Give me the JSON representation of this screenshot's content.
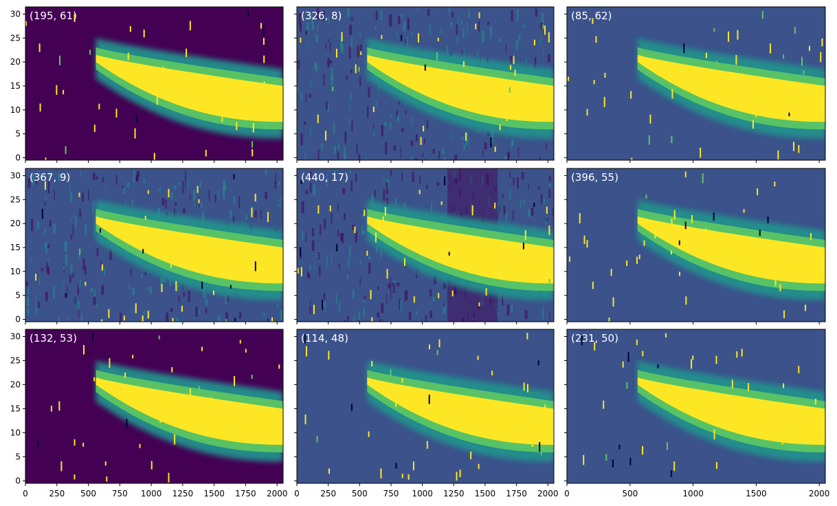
{
  "figure": {
    "colors": {
      "background_dark": "#440154",
      "background_medium": "#3b528b",
      "noise_teal": "#21918c",
      "signal_green": "#5ec962",
      "saturated_yellow": "#fde725",
      "axis": "#000000"
    },
    "colormap": "viridis"
  },
  "chart_data": [
    {
      "type": "heatmap",
      "label": "(195, 61)",
      "background": "dark",
      "xlim": [
        0,
        2048
      ],
      "ylim": [
        -0.5,
        31.5
      ],
      "xticks": [
        0,
        250,
        500,
        750,
        1000,
        1250,
        1500,
        1750,
        2000
      ],
      "xtick_labels_shown": false,
      "yticks": [
        0,
        5,
        10,
        15,
        20,
        25,
        30
      ],
      "ytick_labels_shown": true,
      "trace": {
        "start_x": 560,
        "end_x": 2048,
        "top_start_y": 21.5,
        "top_end_y": 15,
        "bottom_start_y": 20,
        "bottom_end_y": 7.5,
        "halo_width": 3.5
      }
    },
    {
      "type": "heatmap",
      "label": "(326, 8)",
      "background": "noisy",
      "xlim": [
        0,
        2048
      ],
      "ylim": [
        -0.5,
        31.5
      ],
      "xticks": [
        0,
        250,
        500,
        750,
        1000,
        1250,
        1500,
        1750,
        2000
      ],
      "xtick_labels_shown": false,
      "yticks": [
        0,
        5,
        10,
        15,
        20,
        25,
        30
      ],
      "ytick_labels_shown": false,
      "trace": {
        "start_x": 560,
        "end_x": 2048,
        "top_start_y": 21.5,
        "top_end_y": 15,
        "bottom_start_y": 20,
        "bottom_end_y": 7.5,
        "halo_width": 3.5
      }
    },
    {
      "type": "heatmap",
      "label": "(85, 62)",
      "background": "medium",
      "xlim": [
        0,
        2048
      ],
      "ylim": [
        -0.5,
        31.5
      ],
      "xticks": [
        0,
        500,
        1000,
        1500,
        2000
      ],
      "xtick_labels_shown": false,
      "yticks": [
        0,
        5,
        10,
        15,
        20,
        25,
        30
      ],
      "ytick_labels_shown": false,
      "trace": {
        "start_x": 560,
        "end_x": 2048,
        "top_start_y": 21.5,
        "top_end_y": 15,
        "bottom_start_y": 20,
        "bottom_end_y": 7.5,
        "halo_width": 3.5
      }
    },
    {
      "type": "heatmap",
      "label": "(367, 9)",
      "background": "noisy",
      "xlim": [
        0,
        2048
      ],
      "ylim": [
        -0.5,
        31.5
      ],
      "xticks": [
        0,
        250,
        500,
        750,
        1000,
        1250,
        1500,
        1750,
        2000
      ],
      "xtick_labels_shown": false,
      "yticks": [
        0,
        5,
        10,
        15,
        20,
        25,
        30
      ],
      "ytick_labels_shown": true,
      "trace": {
        "start_x": 560,
        "end_x": 2048,
        "top_start_y": 21.5,
        "top_end_y": 15,
        "bottom_start_y": 20,
        "bottom_end_y": 7.5,
        "halo_width": 3.5
      }
    },
    {
      "type": "heatmap",
      "label": "(440, 17)",
      "background": "mixed",
      "xlim": [
        0,
        2048
      ],
      "ylim": [
        -0.5,
        31.5
      ],
      "xticks": [
        0,
        250,
        500,
        750,
        1000,
        1250,
        1500,
        1750,
        2000
      ],
      "xtick_labels_shown": false,
      "yticks": [
        0,
        5,
        10,
        15,
        20,
        25,
        30
      ],
      "ytick_labels_shown": false,
      "trace": {
        "start_x": 560,
        "end_x": 2048,
        "top_start_y": 21.5,
        "top_end_y": 15,
        "bottom_start_y": 20,
        "bottom_end_y": 7.5,
        "halo_width": 3.5
      }
    },
    {
      "type": "heatmap",
      "label": "(396, 55)",
      "background": "medium",
      "xlim": [
        0,
        2048
      ],
      "ylim": [
        -0.5,
        31.5
      ],
      "xticks": [
        0,
        500,
        1000,
        1500,
        2000
      ],
      "xtick_labels_shown": false,
      "yticks": [
        0,
        5,
        10,
        15,
        20,
        25,
        30
      ],
      "ytick_labels_shown": false,
      "trace": {
        "start_x": 560,
        "end_x": 2048,
        "top_start_y": 21.5,
        "top_end_y": 15,
        "bottom_start_y": 20,
        "bottom_end_y": 7.5,
        "halo_width": 3.5
      }
    },
    {
      "type": "heatmap",
      "label": "(132, 53)",
      "background": "dark",
      "xlim": [
        0,
        2048
      ],
      "ylim": [
        -0.5,
        31.5
      ],
      "xticks": [
        0,
        250,
        500,
        750,
        1000,
        1250,
        1500,
        1750,
        2000
      ],
      "xtick_labels_shown": true,
      "yticks": [
        0,
        5,
        10,
        15,
        20,
        25,
        30
      ],
      "ytick_labels_shown": true,
      "trace": {
        "start_x": 560,
        "end_x": 2048,
        "top_start_y": 21.5,
        "top_end_y": 15,
        "bottom_start_y": 20,
        "bottom_end_y": 7.5,
        "halo_width": 3.5
      }
    },
    {
      "type": "heatmap",
      "label": "(114, 48)",
      "background": "medium",
      "xlim": [
        0,
        2048
      ],
      "ylim": [
        -0.5,
        31.5
      ],
      "xticks": [
        0,
        250,
        500,
        750,
        1000,
        1250,
        1500,
        1750,
        2000
      ],
      "xtick_labels_shown": true,
      "yticks": [
        0,
        5,
        10,
        15,
        20,
        25,
        30
      ],
      "ytick_labels_shown": false,
      "trace": {
        "start_x": 560,
        "end_x": 2048,
        "top_start_y": 21.5,
        "top_end_y": 15,
        "bottom_start_y": 20,
        "bottom_end_y": 7.5,
        "halo_width": 3.5
      }
    },
    {
      "type": "heatmap",
      "label": "(231, 50)",
      "background": "medium",
      "xlim": [
        0,
        2048
      ],
      "ylim": [
        -0.5,
        31.5
      ],
      "xticks": [
        0,
        500,
        1000,
        1500,
        2000
      ],
      "xtick_labels_shown": true,
      "yticks": [
        0,
        5,
        10,
        15,
        20,
        25,
        30
      ],
      "ytick_labels_shown": false,
      "trace": {
        "start_x": 560,
        "end_x": 2048,
        "top_start_y": 21.5,
        "top_end_y": 15,
        "bottom_start_y": 20,
        "bottom_end_y": 7.5,
        "halo_width": 3.5
      }
    }
  ]
}
